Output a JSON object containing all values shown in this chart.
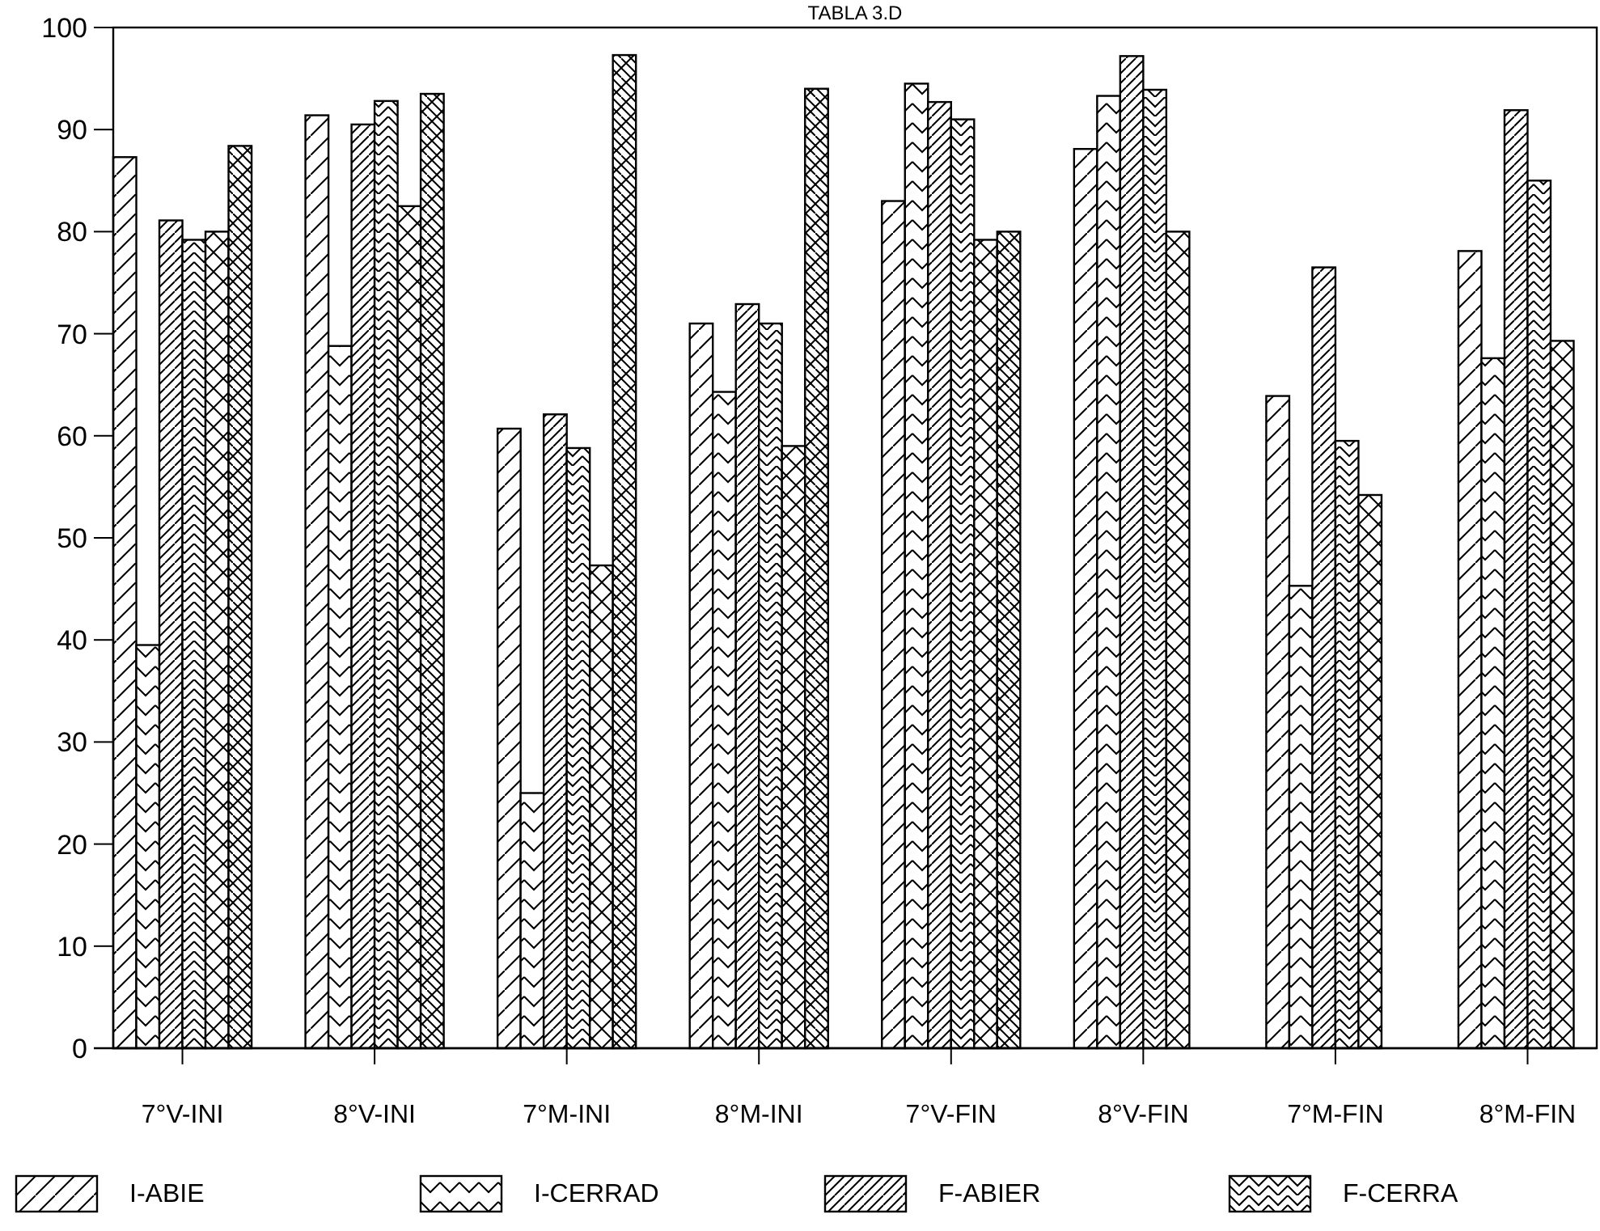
{
  "chart_data": {
    "type": "bar",
    "title": "TABLA 3.D",
    "categories": [
      "7°V-INI",
      "8°V-INI",
      "7°M-INI",
      "8°M-INI",
      "7°V-FIN",
      "8°V-FIN",
      "7°M-FIN",
      "8°M-FIN"
    ],
    "series": [
      {
        "name": "I-ABIE",
        "color": "#000000",
        "values": [
          87.3,
          91.4,
          60.7,
          71.0,
          83.0,
          88.1,
          63.9,
          78.1
        ]
      },
      {
        "name": "I-CERRAD",
        "color": "#000000",
        "values": [
          39.5,
          68.8,
          25.0,
          64.3,
          94.5,
          93.3,
          45.3,
          67.6
        ]
      },
      {
        "name": "F-ABIER",
        "color": "#000000",
        "values": [
          81.1,
          90.5,
          62.1,
          72.9,
          92.7,
          97.2,
          76.5,
          91.9
        ]
      },
      {
        "name": "F-CERRA",
        "color": "#000000",
        "values": [
          79.2,
          92.8,
          58.8,
          71.0,
          91.0,
          93.9,
          59.5,
          85.0
        ]
      },
      {
        "color": "#000000",
        "values": [
          80.0,
          82.5,
          47.3,
          59.0,
          79.2,
          80.0,
          54.2,
          69.3
        ]
      },
      {
        "color": "#000000",
        "values": [
          88.4,
          93.5,
          97.3,
          94.0,
          80.0,
          null,
          null,
          null
        ]
      }
    ],
    "ylim": [
      0,
      100
    ],
    "yticks": [
      0,
      10,
      20,
      30,
      40,
      50,
      60,
      70,
      80,
      90,
      100
    ],
    "grid": false,
    "legend": "bottom"
  }
}
